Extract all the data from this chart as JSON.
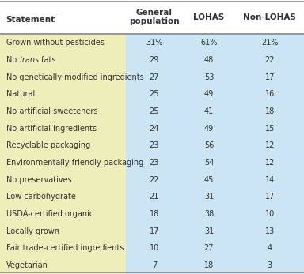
{
  "headers": [
    "Statement",
    "General\npopulation",
    "LOHAS",
    "Non-LOHAS"
  ],
  "rows": [
    [
      "Grown without pesticides",
      "31%",
      "61%",
      "21%"
    ],
    [
      "No trans fats",
      "29",
      "48",
      "22"
    ],
    [
      "No genetically modified ingredients",
      "27",
      "53",
      "17"
    ],
    [
      "Natural",
      "25",
      "49",
      "16"
    ],
    [
      "No artificial sweeteners",
      "25",
      "41",
      "18"
    ],
    [
      "No artificial ingredients",
      "24",
      "49",
      "15"
    ],
    [
      "Recyclable packaging",
      "23",
      "56",
      "12"
    ],
    [
      "Environmentally friendly packaging",
      "23",
      "54",
      "12"
    ],
    [
      "No preservatives",
      "22",
      "45",
      "14"
    ],
    [
      "Low carbohydrate",
      "21",
      "31",
      "17"
    ],
    [
      "USDA-certified organic",
      "18",
      "38",
      "10"
    ],
    [
      "Locally grown",
      "17",
      "31",
      "13"
    ],
    [
      "Fair trade-certified ingredients",
      "10",
      "27",
      "4"
    ],
    [
      "Vegetarian",
      "7",
      "18",
      "3"
    ]
  ],
  "italic_row": 1,
  "row_bg_left": "#eeeebb",
  "row_bg_right": "#cce5f5",
  "line_color": "#888888",
  "text_color": "#333333",
  "figsize": [
    3.84,
    3.47
  ],
  "dpi": 100,
  "col_splits": [
    0.415,
    0.6,
    0.775
  ],
  "font_size": 7.0,
  "header_font_size": 7.5
}
